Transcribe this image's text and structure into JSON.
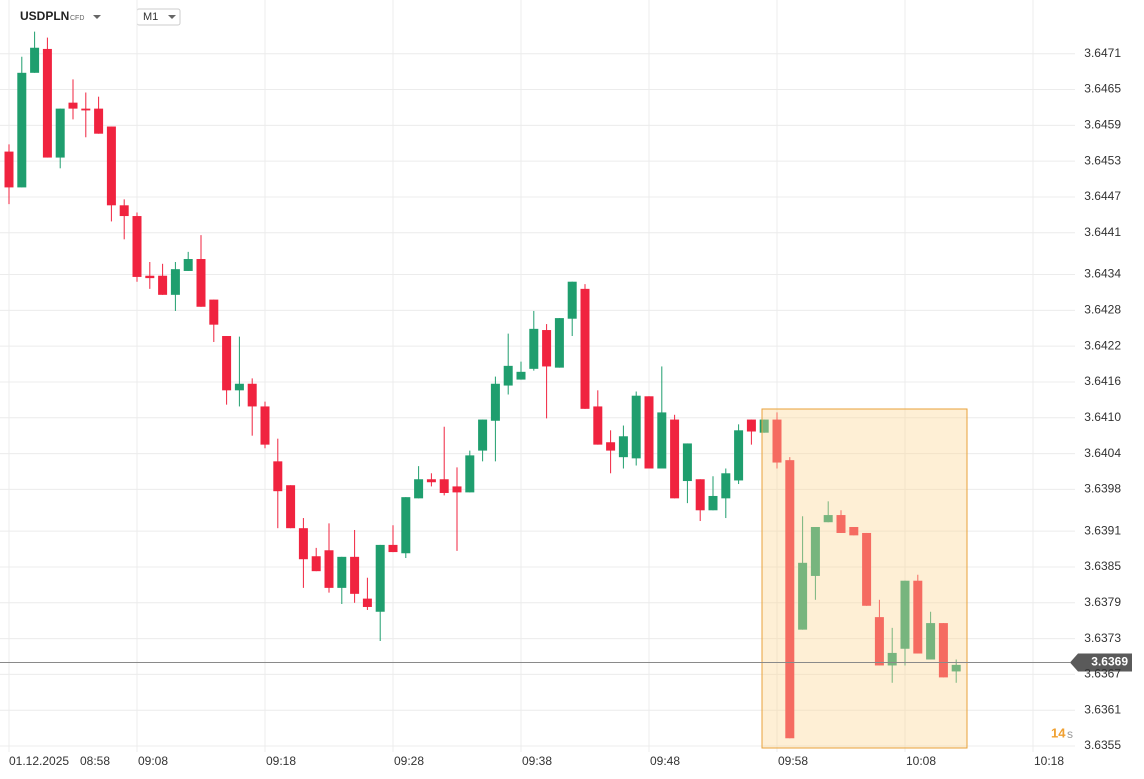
{
  "header": {
    "symbol": "USDPLN",
    "instrument_type": "CFD",
    "interval": "M1"
  },
  "chart_data": {
    "type": "candlestick",
    "date_label": "01.12.2025",
    "categories": [
      "08:58",
      null,
      null,
      null,
      null,
      null,
      null,
      null,
      null,
      null,
      "09:08",
      null,
      null,
      null,
      null,
      null,
      null,
      null,
      null,
      null,
      "09:18",
      null,
      null,
      null,
      null,
      null,
      null,
      null,
      null,
      null,
      "09:28",
      null,
      null,
      null,
      null,
      null,
      null,
      null,
      null,
      null,
      "09:38",
      null,
      null,
      null,
      null,
      null,
      null,
      null,
      null,
      null,
      "09:48",
      null,
      null,
      null,
      null,
      null,
      null,
      null,
      null,
      null,
      "09:58",
      null,
      null,
      null,
      null,
      null,
      null,
      null,
      null,
      null,
      "10:08",
      null,
      null,
      null,
      null,
      null,
      null,
      null,
      null,
      null,
      "10:18",
      null,
      null,
      null
    ],
    "open": [
      3.64546,
      3.64486,
      3.64678,
      3.64718,
      3.64536,
      3.64628,
      3.64618,
      3.64618,
      3.64588,
      3.64456,
      3.64438,
      3.64338,
      3.64338,
      3.64306,
      3.64346,
      3.64366,
      3.64298,
      3.64237,
      3.64146,
      3.64157,
      3.64119,
      3.64027,
      3.63987,
      3.63915,
      3.63868,
      3.63878,
      3.63815,
      3.63867,
      3.63797,
      3.63775,
      3.63887,
      3.63873,
      3.63965,
      3.63997,
      3.63997,
      3.63985,
      3.63975,
      3.64045,
      3.64095,
      3.64154,
      3.64164,
      3.64182,
      3.64247,
      3.64184,
      3.64266,
      3.64316,
      3.64119,
      3.64059,
      3.64034,
      3.64032,
      3.64136,
      3.64015,
      3.64097,
      3.63994,
      3.63997,
      3.63945,
      3.63965,
      3.63995,
      3.64097,
      3.64075,
      3.64097,
      3.64029,
      3.63745,
      3.63835,
      3.63925,
      3.63937,
      3.63917,
      3.63907,
      3.63766,
      3.63685,
      3.63713,
      3.63827,
      3.63695,
      3.63756,
      3.63675,
      null,
      null,
      null,
      null,
      null,
      null,
      null,
      null,
      null
    ],
    "high": [
      3.64558,
      3.64705,
      3.64747,
      3.64737,
      3.64618,
      3.64667,
      3.64645,
      3.64638,
      3.64588,
      3.64466,
      3.64444,
      3.64361,
      3.64358,
      3.64361,
      3.64378,
      3.64406,
      3.64298,
      3.64237,
      3.64236,
      3.64166,
      3.64127,
      3.64065,
      3.63987,
      3.63932,
      3.63882,
      3.63923,
      3.63867,
      3.63912,
      3.63832,
      3.63887,
      3.6392,
      3.63967,
      3.64019,
      3.64007,
      3.64085,
      3.64017,
      3.64045,
      3.64097,
      3.64169,
      3.64241,
      3.64194,
      3.64279,
      3.64257,
      3.64267,
      3.64328,
      3.64324,
      3.64146,
      3.64079,
      3.64087,
      3.64144,
      3.64136,
      3.64186,
      3.64105,
      3.64057,
      3.63997,
      3.64002,
      3.64015,
      3.64089,
      3.64097,
      3.64097,
      3.64109,
      3.64034,
      3.63935,
      3.63917,
      3.6396,
      3.63945,
      3.63917,
      3.63907,
      3.63795,
      3.63748,
      3.63827,
      3.63837,
      3.63775,
      3.63756,
      3.63695,
      null,
      null,
      null,
      null,
      null,
      null,
      null,
      null,
      null
    ],
    "low": [
      3.64458,
      3.64486,
      3.64678,
      3.64536,
      3.64518,
      3.646,
      3.6457,
      3.64576,
      3.64429,
      3.64399,
      3.64328,
      3.64316,
      3.64306,
      3.64279,
      3.64346,
      3.64286,
      3.64227,
      3.64122,
      3.64119,
      3.6407,
      3.64049,
      3.63915,
      3.63915,
      3.63815,
      3.63843,
      3.63807,
      3.63788,
      3.6379,
      3.63778,
      3.63726,
      3.63875,
      3.63865,
      3.63965,
      3.63985,
      3.6397,
      3.63877,
      3.63975,
      3.64027,
      3.64027,
      3.64139,
      3.64164,
      3.64179,
      3.64099,
      3.64184,
      3.64237,
      3.64115,
      3.64055,
      3.64007,
      3.64015,
      3.6402,
      3.64015,
      3.64015,
      3.63965,
      3.63957,
      3.63927,
      3.63945,
      3.63932,
      3.63989,
      3.64055,
      3.64075,
      3.64015,
      3.63563,
      3.63745,
      3.63795,
      3.63925,
      3.63907,
      3.63903,
      3.63785,
      3.63685,
      3.63656,
      3.63685,
      3.63705,
      3.63695,
      3.63665,
      3.63656,
      null,
      null,
      null,
      null,
      null,
      null,
      null,
      null,
      null
    ],
    "close": [
      3.64486,
      3.64678,
      3.6472,
      3.64536,
      3.64618,
      3.64618,
      3.64615,
      3.64576,
      3.64456,
      3.64438,
      3.64336,
      3.64334,
      3.64306,
      3.64349,
      3.64366,
      3.64286,
      3.64256,
      3.64146,
      3.64157,
      3.64119,
      3.64055,
      3.63977,
      3.63915,
      3.63863,
      3.63843,
      3.63815,
      3.63867,
      3.63805,
      3.63783,
      3.63887,
      3.63875,
      3.63967,
      3.63997,
      3.63992,
      3.63974,
      3.63975,
      3.64037,
      3.64097,
      3.64157,
      3.64187,
      3.64177,
      3.64249,
      3.64186,
      3.64267,
      3.64328,
      3.64115,
      3.64055,
      3.64045,
      3.64069,
      3.64137,
      3.64015,
      3.64109,
      3.63965,
      3.64057,
      3.63945,
      3.63969,
      3.64007,
      3.64079,
      3.64077,
      3.64097,
      3.64025,
      3.63563,
      3.63857,
      3.63917,
      3.63937,
      3.63907,
      3.63903,
      3.63785,
      3.63685,
      3.63706,
      3.63827,
      3.63705,
      3.63756,
      3.63665,
      3.63686,
      null,
      null,
      null,
      null,
      null,
      null,
      null,
      null,
      null
    ],
    "up_color": "#1f9e6e",
    "down_color": "#f0233f",
    "ylim": [
      3.6354,
      3.648
    ],
    "yticks": [
      3.6471,
      3.6465,
      3.6459,
      3.6453,
      3.6447,
      3.6441,
      3.6434,
      3.6428,
      3.6422,
      3.6416,
      {
        "value": 3.641,
        "label": "3.6410"
      },
      3.6404,
      3.6398,
      3.6391,
      3.6385,
      3.6379,
      3.6373,
      3.6367,
      3.6361,
      3.6355
    ],
    "grid": true,
    "last_price": 3.6369,
    "countdown": "14",
    "countdown_unit": "s"
  }
}
